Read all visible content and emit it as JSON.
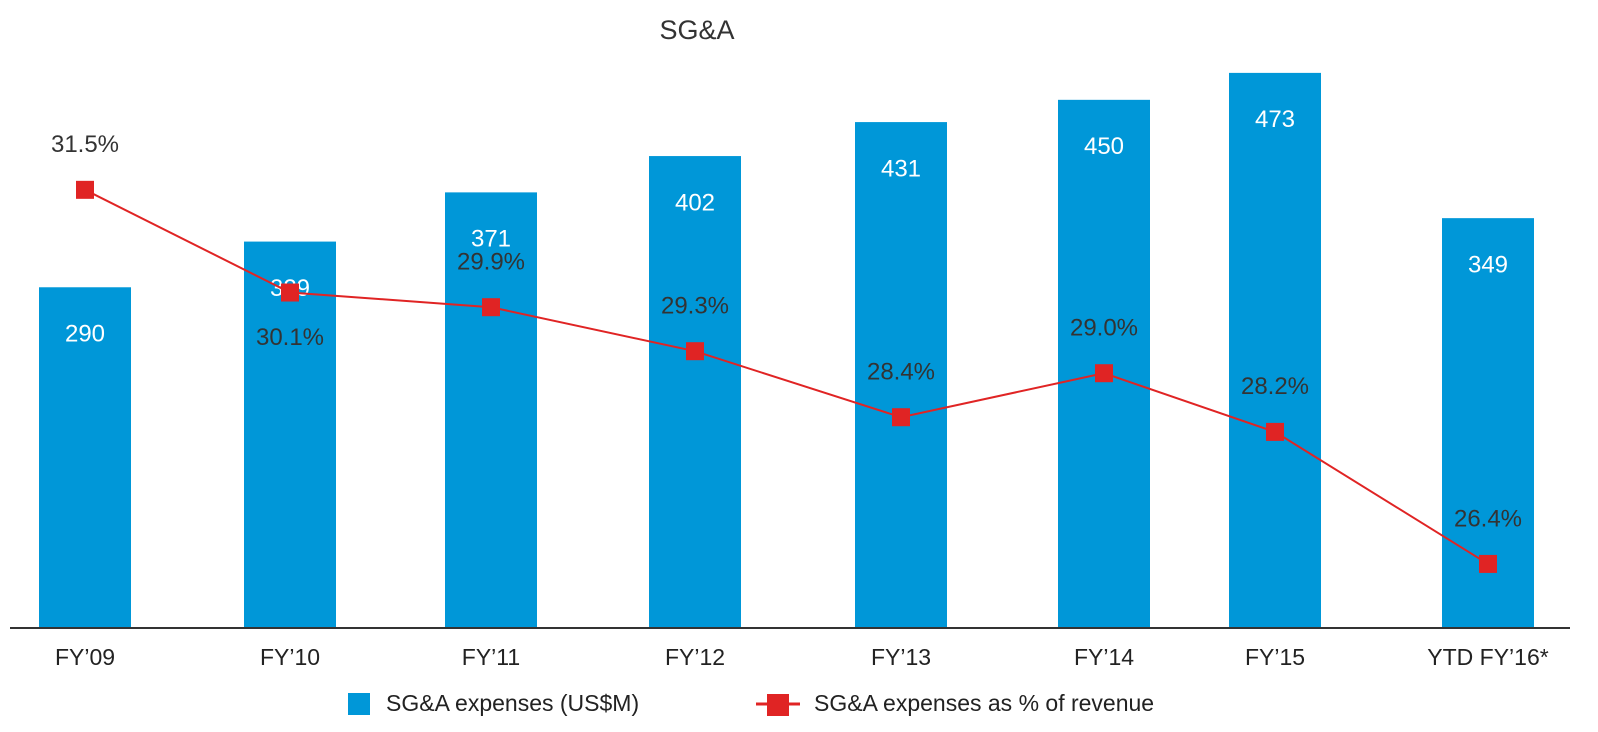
{
  "chart_data": {
    "type": "bar-line",
    "title": "SG&A",
    "categories": [
      "FY’09",
      "FY’10",
      "FY’11",
      "FY’12",
      "FY’13",
      "FY’14",
      "FY’15",
      "YTD FY’16*"
    ],
    "series": [
      {
        "name": "SG&A expenses (US$M)",
        "type": "bar",
        "color": "#0097d8",
        "values": [
          290,
          329,
          371,
          402,
          431,
          450,
          473,
          349
        ]
      },
      {
        "name": "SG&A expenses as % of revenue",
        "type": "line",
        "axis": "y2",
        "color": "#e02424",
        "values": [
          31.5,
          30.1,
          29.9,
          29.3,
          28.4,
          29.0,
          28.2,
          26.4
        ],
        "value_labels": [
          "31.5%",
          "30.1%",
          "29.9%",
          "29.3%",
          "28.4%",
          "29.0%",
          "28.2%",
          "26.4%"
        ]
      }
    ],
    "ylim": [
      0,
      484
    ],
    "y2lim": [
      25.54,
      33.27
    ],
    "legend": "bottom"
  }
}
